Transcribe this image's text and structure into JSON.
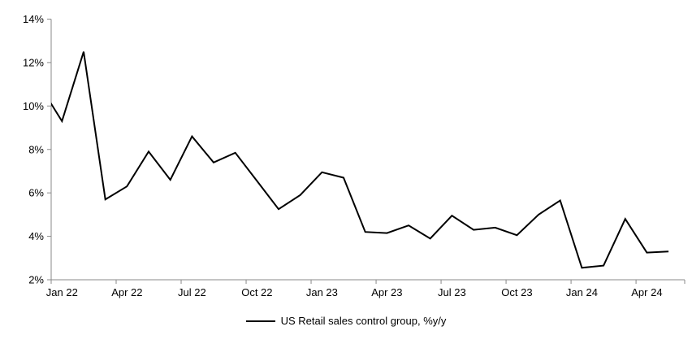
{
  "chart_data": {
    "type": "line",
    "title": "",
    "legend": {
      "position": "bottom-center",
      "label": "US Retail sales control group, %y/y"
    },
    "grid": false,
    "colors": {
      "line": "#000000",
      "axis": "#898989",
      "text": "#000000",
      "background": "#ffffff"
    },
    "y_axis": {
      "min": 2,
      "max": 14,
      "tick_labels": [
        "2%",
        "4%",
        "6%",
        "8%",
        "10%",
        "12%",
        "14%"
      ]
    },
    "x_axis": {
      "tick_labels": [
        "Jan 22",
        "Apr 22",
        "Jul 22",
        "Oct 22",
        "Jan 23",
        "Apr 23",
        "Jul 23",
        "Oct 23",
        "Jan 24",
        "Apr 24"
      ]
    },
    "series": [
      {
        "name": "US Retail sales control group, %y/y",
        "x": [
          "Dec 21",
          "Jan 22",
          "Feb 22",
          "Mar 22",
          "Apr 22",
          "May 22",
          "Jun 22",
          "Jul 22",
          "Aug 22",
          "Sep 22",
          "Oct 22",
          "Nov 22",
          "Dec 22",
          "Jan 23",
          "Feb 23",
          "Mar 23",
          "Apr 23",
          "May 23",
          "Jun 23",
          "Jul 23",
          "Aug 23",
          "Sep 23",
          "Oct 23",
          "Nov 23",
          "Dec 23",
          "Jan 24",
          "Feb 24",
          "Mar 24",
          "Apr 24",
          "May 24"
        ],
        "values": [
          10.9,
          9.3,
          12.5,
          5.7,
          6.3,
          7.9,
          6.6,
          8.6,
          7.4,
          7.85,
          6.55,
          5.25,
          5.9,
          6.95,
          6.7,
          4.2,
          4.15,
          4.5,
          3.9,
          4.95,
          4.3,
          4.4,
          4.05,
          5.0,
          5.65,
          2.55,
          2.65,
          4.8,
          3.25,
          3.3
        ]
      }
    ]
  }
}
